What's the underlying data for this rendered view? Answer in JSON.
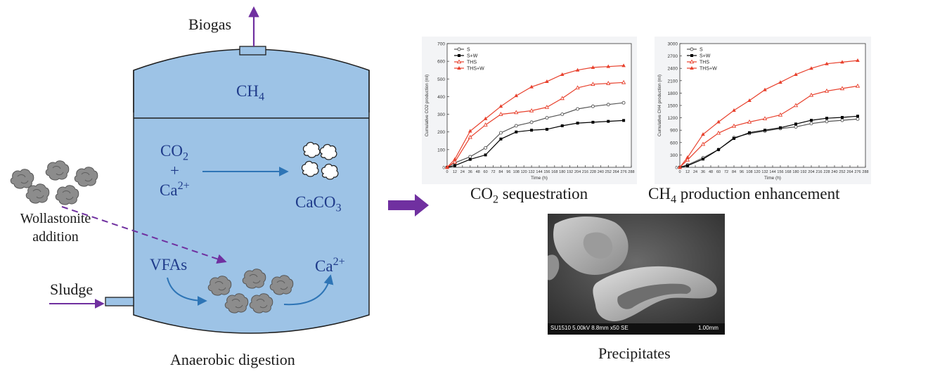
{
  "diagram": {
    "biogas": "Biogas",
    "ch4_base": "CH",
    "ch4_sub": "4",
    "co2_base": "CO",
    "co2_sub": "2",
    "plus": "+",
    "ca_base": "Ca",
    "ca_sup": "2+",
    "caco3_base": "CaCO",
    "caco3_sub": "3",
    "vfas": "VFAs",
    "ca_out_base": "Ca",
    "ca_out_sup": "2+",
    "wollastonite_line1": "Wollastonite",
    "wollastonite_line2": "addition",
    "sludge": "Sludge",
    "anaerobic": "Anaerobic digestion",
    "co2_caption_base": "CO",
    "co2_caption_sub": "2",
    "co2_caption_rest": " sequestration",
    "ch4_caption_base": "CH",
    "ch4_caption_sub": "4",
    "ch4_caption_rest": " production enhancement",
    "precipitates": "Precipitates",
    "sem_info": "SU1510 5.00kV 8.8mm x50 SE",
    "sem_scale": "1.00mm"
  },
  "colors": {
    "tank_fill": "#9dc3e6",
    "tank_stroke": "#1f1f1f",
    "arrow_purple": "#7030a0",
    "arrow_blue": "#2e75b6",
    "series_S": "#555555",
    "series_SW": "#000000",
    "series_THS": "#e8412d",
    "series_THSW": "#e8412d"
  },
  "chart_data": [
    {
      "type": "line",
      "xlabel": "Time (h)",
      "ylabel": "Cumulative CO2 production (ml)",
      "xlim": [
        0,
        288
      ],
      "ylim": [
        0,
        700
      ],
      "xticks": [
        "0",
        "12",
        "24",
        "36",
        "48",
        "60",
        "72",
        "84",
        "96",
        "108",
        "120",
        "132",
        "144",
        "156",
        "168",
        "180",
        "192",
        "204",
        "216",
        "228",
        "240",
        "252",
        "264",
        "276",
        "288"
      ],
      "yticks": [
        "0",
        "100",
        "200",
        "300",
        "400",
        "500",
        "600",
        "700"
      ],
      "legend_position": "top-left",
      "series": [
        {
          "name": "S",
          "color": "#555555",
          "marker": "open-circle",
          "x": [
            0,
            12,
            36,
            60,
            84,
            108,
            132,
            156,
            180,
            204,
            228,
            252,
            276
          ],
          "values": [
            0,
            25,
            60,
            110,
            195,
            235,
            255,
            280,
            300,
            330,
            345,
            355,
            365
          ]
        },
        {
          "name": "S+W",
          "color": "#000000",
          "marker": "square",
          "x": [
            0,
            12,
            36,
            60,
            84,
            108,
            132,
            156,
            180,
            204,
            228,
            252,
            276
          ],
          "values": [
            0,
            10,
            45,
            70,
            160,
            200,
            210,
            215,
            235,
            250,
            255,
            260,
            265
          ]
        },
        {
          "name": "THS",
          "color": "#e8412d",
          "marker": "open-triangle",
          "x": [
            0,
            12,
            36,
            60,
            84,
            108,
            132,
            156,
            180,
            204,
            228,
            252,
            276
          ],
          "values": [
            0,
            30,
            170,
            240,
            300,
            310,
            320,
            340,
            390,
            450,
            470,
            475,
            480
          ]
        },
        {
          "name": "THS+W",
          "color": "#e8412d",
          "marker": "triangle",
          "x": [
            0,
            12,
            36,
            60,
            84,
            108,
            132,
            156,
            180,
            204,
            228,
            252,
            276
          ],
          "values": [
            0,
            45,
            205,
            275,
            345,
            405,
            455,
            485,
            525,
            550,
            565,
            570,
            575
          ]
        }
      ]
    },
    {
      "type": "line",
      "xlabel": "Time (h)",
      "ylabel": "Cumulative CH4 production (ml)",
      "xlim": [
        0,
        288
      ],
      "ylim": [
        0,
        3000
      ],
      "xticks": [
        "0",
        "12",
        "24",
        "36",
        "48",
        "60",
        "72",
        "84",
        "96",
        "108",
        "120",
        "132",
        "144",
        "156",
        "168",
        "180",
        "192",
        "204",
        "216",
        "228",
        "240",
        "252",
        "264",
        "276",
        "288"
      ],
      "yticks": [
        "0",
        "300",
        "600",
        "900",
        "1200",
        "1500",
        "1800",
        "2100",
        "2400",
        "2700",
        "3000"
      ],
      "legend_position": "top-left",
      "series": [
        {
          "name": "S",
          "color": "#555555",
          "marker": "open-circle",
          "x": [
            0,
            12,
            36,
            60,
            84,
            108,
            132,
            156,
            180,
            204,
            228,
            252,
            276
          ],
          "values": [
            0,
            60,
            230,
            430,
            720,
            820,
            880,
            940,
            980,
            1060,
            1110,
            1140,
            1170
          ]
        },
        {
          "name": "S+W",
          "color": "#000000",
          "marker": "square",
          "x": [
            0,
            12,
            36,
            60,
            84,
            108,
            132,
            156,
            180,
            204,
            228,
            252,
            276
          ],
          "values": [
            0,
            40,
            200,
            430,
            700,
            840,
            900,
            960,
            1050,
            1140,
            1190,
            1210,
            1240
          ]
        },
        {
          "name": "THS",
          "color": "#e8412d",
          "marker": "open-triangle",
          "x": [
            0,
            12,
            36,
            60,
            84,
            108,
            132,
            156,
            180,
            204,
            228,
            252,
            276
          ],
          "values": [
            0,
            180,
            560,
            830,
            1000,
            1100,
            1180,
            1270,
            1500,
            1750,
            1850,
            1910,
            1970
          ]
        },
        {
          "name": "THS+W",
          "color": "#e8412d",
          "marker": "triangle",
          "x": [
            0,
            12,
            36,
            60,
            84,
            108,
            132,
            156,
            180,
            204,
            228,
            252,
            276
          ],
          "values": [
            0,
            240,
            800,
            1100,
            1380,
            1620,
            1880,
            2060,
            2250,
            2400,
            2510,
            2550,
            2590
          ]
        }
      ]
    }
  ]
}
